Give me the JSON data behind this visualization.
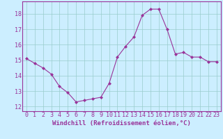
{
  "x": [
    0,
    1,
    2,
    3,
    4,
    5,
    6,
    7,
    8,
    9,
    10,
    11,
    12,
    13,
    14,
    15,
    16,
    17,
    18,
    19,
    20,
    21,
    22,
    23
  ],
  "y": [
    15.1,
    14.8,
    14.5,
    14.1,
    13.3,
    12.9,
    12.3,
    12.4,
    12.5,
    12.6,
    13.5,
    15.2,
    15.9,
    16.5,
    17.9,
    18.3,
    18.3,
    17.0,
    15.4,
    15.5,
    15.2,
    15.2,
    14.9,
    14.9
  ],
  "line_color": "#993399",
  "marker": "D",
  "marker_size": 2.0,
  "bg_color": "#cceeff",
  "grid_color": "#99cccc",
  "xlabel": "Windchill (Refroidissement éolien,°C)",
  "xlabel_fontsize": 6.5,
  "xtick_labels": [
    "0",
    "1",
    "2",
    "3",
    "4",
    "5",
    "6",
    "7",
    "8",
    "9",
    "10",
    "11",
    "12",
    "13",
    "14",
    "15",
    "16",
    "17",
    "18",
    "19",
    "20",
    "21",
    "22",
    "23"
  ],
  "xticks": [
    0,
    1,
    2,
    3,
    4,
    5,
    6,
    7,
    8,
    9,
    10,
    11,
    12,
    13,
    14,
    15,
    16,
    17,
    18,
    19,
    20,
    21,
    22,
    23
  ],
  "yticks": [
    12,
    13,
    14,
    15,
    16,
    17,
    18
  ],
  "ytick_labels": [
    "12",
    "13",
    "14",
    "15",
    "16",
    "17",
    "18"
  ],
  "ylim": [
    11.7,
    18.8
  ],
  "xlim": [
    -0.5,
    23.5
  ],
  "tick_fontsize": 6.0,
  "tick_color": "#993399",
  "spine_color": "#993399",
  "linewidth": 0.8
}
